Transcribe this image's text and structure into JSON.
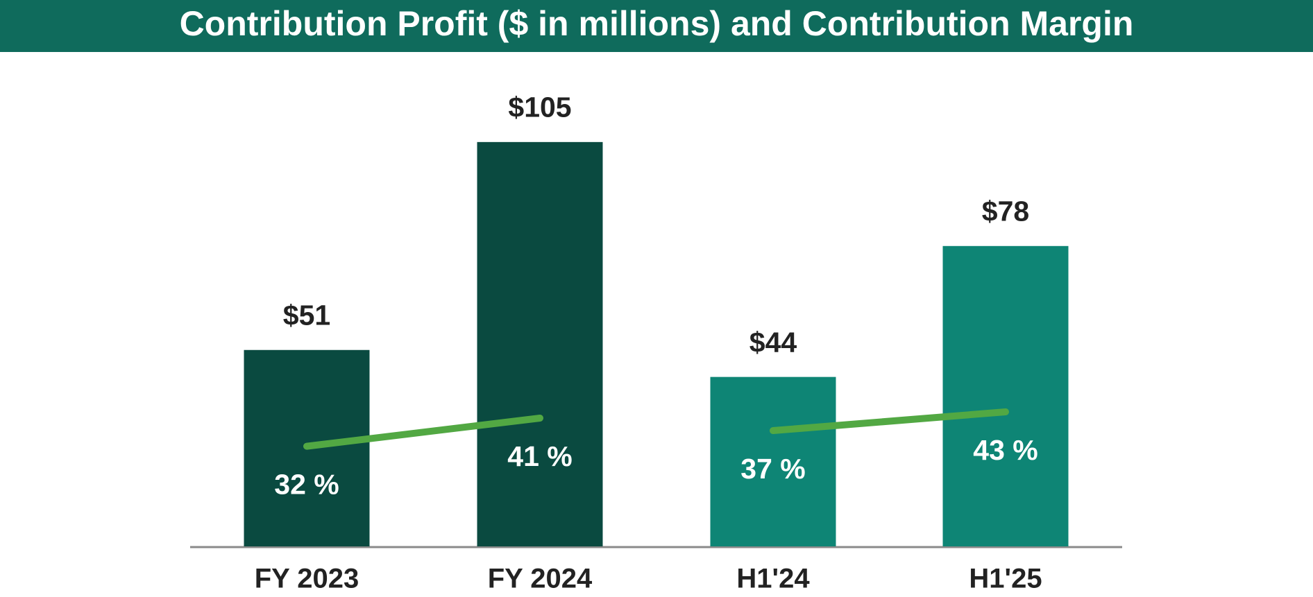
{
  "chart_data": {
    "type": "bar",
    "title": "Contribution Profit ($ in millions) and Contribution Margin",
    "categories": [
      "FY 2023",
      "FY 2024",
      "H1'24",
      "H1'25"
    ],
    "series": [
      {
        "type": "bar",
        "colors": [
          "#0a4a40",
          "#0a4a40",
          "#0e8575",
          "#0e8575"
        ],
        "values": [
          51,
          105,
          44,
          78
        ],
        "value_labels": [
          "$51",
          "$105",
          "$44",
          "$78"
        ]
      },
      {
        "type": "line",
        "axis": "y2",
        "color": "#52a843",
        "values": [
          32,
          41,
          null,
          null
        ],
        "value_labels": [
          "32 %",
          "41 %",
          null,
          null
        ]
      },
      {
        "type": "line",
        "axis": "y2",
        "color": "#52a843",
        "values": [
          null,
          null,
          37,
          43
        ],
        "value_labels": [
          null,
          null,
          "37 %",
          "43 %"
        ]
      }
    ],
    "ylim": [
      0,
      130
    ],
    "y2lim": [
      0,
      160
    ]
  }
}
